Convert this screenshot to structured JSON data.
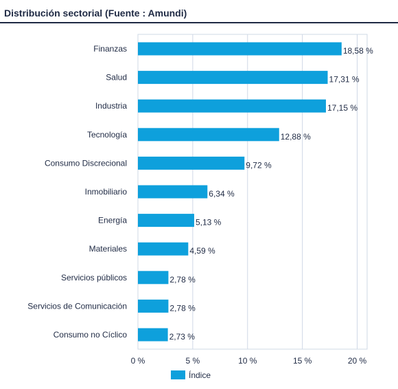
{
  "title": "Distribución sectorial (Fuente : Amundi)",
  "colors": {
    "bar": "#0ea0dc",
    "grid": "#cfd8e6",
    "text": "#1f2a44"
  },
  "chart_data": {
    "type": "bar",
    "orientation": "horizontal",
    "categories": [
      "Finanzas",
      "Salud",
      "Industria",
      "Tecnología",
      "Consumo Discrecional",
      "Inmobiliario",
      "Energía",
      "Materiales",
      "Servicios públicos",
      "Servicios de Comunicación",
      "Consumo no Cíclico"
    ],
    "series": [
      {
        "name": "Índice",
        "values": [
          18.58,
          17.31,
          17.15,
          12.88,
          9.72,
          6.34,
          5.13,
          4.59,
          2.78,
          2.78,
          2.73
        ]
      }
    ],
    "value_labels": [
      "18,58 %",
      "17,31 %",
      "17,15 %",
      "12,88 %",
      "9,72 %",
      "6,34 %",
      "5,13 %",
      "4,59 %",
      "2,78 %",
      "2,78 %",
      "2,73 %"
    ],
    "xlim": [
      0,
      20
    ],
    "xticks": [
      0,
      5,
      10,
      15,
      20
    ],
    "xtick_labels": [
      "0 %",
      "5 %",
      "10 %",
      "15 %",
      "20 %"
    ],
    "grid": true,
    "legend": {
      "position": "bottom",
      "label": "Índice"
    }
  }
}
